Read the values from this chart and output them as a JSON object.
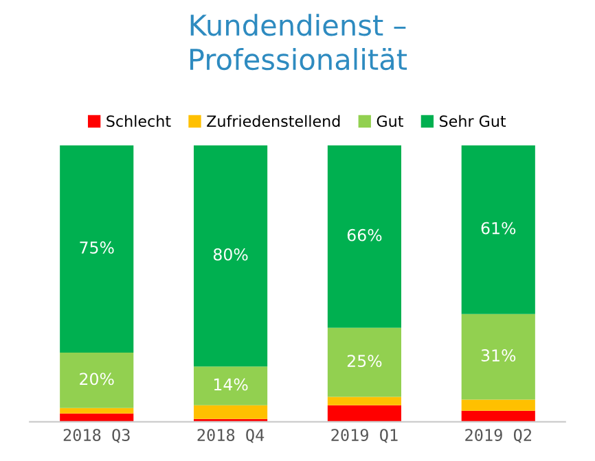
{
  "chart_data": {
    "type": "bar",
    "title": "Kundendienst –\nProfessionalität",
    "stacked": true,
    "legend": "top",
    "grid": false,
    "tick_labels": "x",
    "categories": [
      "2018 Q3",
      "2018 Q4",
      "2019 Q1",
      "2019 Q2"
    ],
    "series": [
      {
        "name": "Schlecht",
        "color": "#ff0000",
        "values": [
          3,
          1,
          6,
          4
        ]
      },
      {
        "name": "Zufriedenstellend",
        "color": "#ffc000",
        "values": [
          2,
          5,
          3,
          4
        ]
      },
      {
        "name": "Gut",
        "color": "#92d050",
        "values": [
          20,
          14,
          25,
          31
        ],
        "value_labels": [
          "20%",
          "14%",
          "25%",
          "31%"
        ]
      },
      {
        "name": "Sehr Gut",
        "color": "#00b050",
        "values": [
          75,
          80,
          66,
          61
        ],
        "value_labels": [
          "75%",
          "80%",
          "66%",
          "61%"
        ]
      }
    ]
  }
}
